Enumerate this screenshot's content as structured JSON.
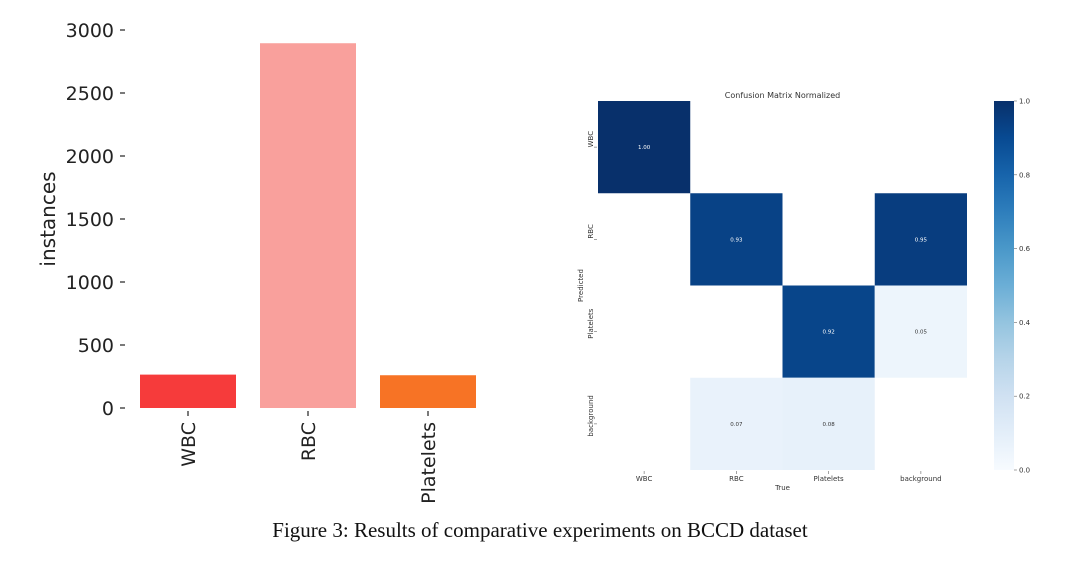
{
  "caption": "Figure 3: Results of comparative experiments on BCCD dataset",
  "chart_data": [
    {
      "type": "bar",
      "ylabel": "instances",
      "categories": [
        "WBC",
        "RBC",
        "Platelets"
      ],
      "values": [
        265,
        2895,
        260
      ],
      "colors": [
        "#f63b3b",
        "#f9a09c",
        "#f77325"
      ],
      "ylim": [
        0,
        3000
      ],
      "yticks": [
        0,
        500,
        1000,
        1500,
        2000,
        2500,
        3000
      ],
      "grid": false
    },
    {
      "type": "heatmap",
      "title": "Confusion Matrix Normalized",
      "xlabel": "True",
      "ylabel": "Predicted",
      "x_categories": [
        "WBC",
        "RBC",
        "Platelets",
        "background"
      ],
      "y_categories": [
        "WBC",
        "RBC",
        "Platelets",
        "background"
      ],
      "matrix": [
        [
          1.0,
          null,
          null,
          null
        ],
        [
          null,
          0.93,
          null,
          0.95
        ],
        [
          null,
          null,
          0.92,
          0.05
        ],
        [
          null,
          0.07,
          0.08,
          null
        ]
      ],
      "colorscale": "Blues",
      "colorbar_range": [
        0,
        1
      ],
      "colorbar_ticks": [
        "0.0",
        "0.2",
        "0.4",
        "0.6",
        "0.8",
        "1.0"
      ]
    }
  ]
}
